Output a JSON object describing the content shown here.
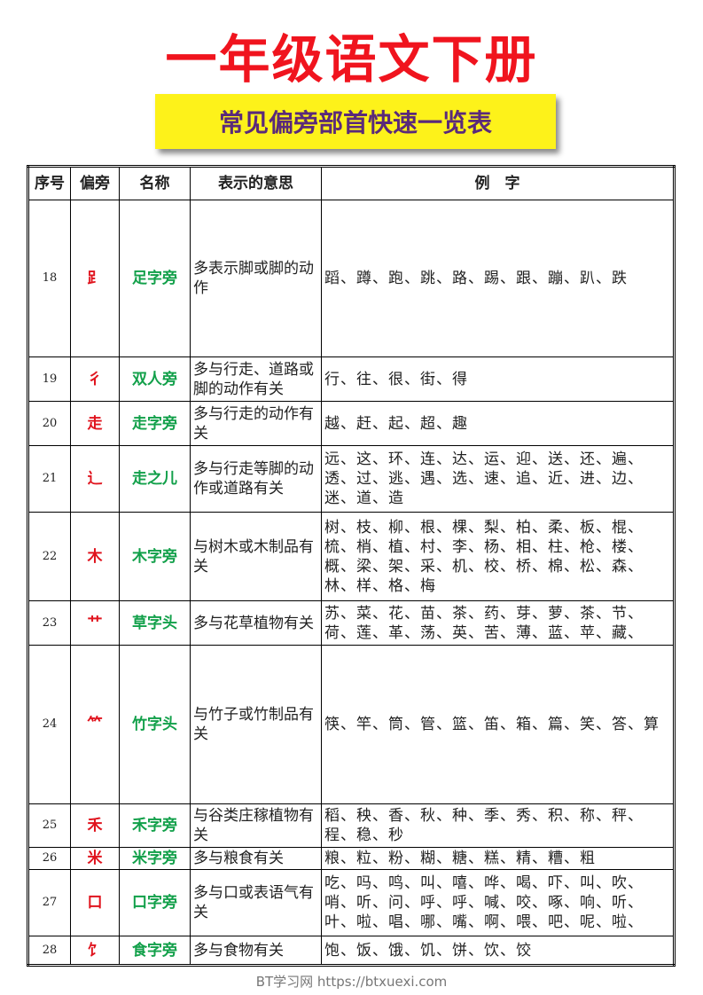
{
  "title": "一年级语文下册",
  "subtitle": "常见偏旁部首快速一览表",
  "headers": [
    "序号",
    "偏旁",
    "名称",
    "表示的意思",
    "例　字"
  ],
  "rows": [
    {
      "num": "18",
      "radical": "𧾷",
      "name": "足字旁",
      "meaning": "多表示脚或脚的动作",
      "examples": "蹈、蹲、跑、跳、路、踢、跟、蹦、趴、跌"
    },
    {
      "num": "19",
      "radical": "彳",
      "name": "双人旁",
      "meaning": "多与行走、道路或脚的动作有关",
      "examples": "行、往、很、街、得"
    },
    {
      "num": "20",
      "radical": "走",
      "name": "走字旁",
      "meaning": "多与行走的动作有关",
      "examples": "越、赶、起、超、趣"
    },
    {
      "num": "21",
      "radical": "辶",
      "name": "走之儿",
      "meaning": "多与行走等脚的动作或道路有关",
      "examples": "远、这、环、连、达、运、迎、送、还、遍、透、过、逃、遇、选、速、追、近、进、边、迷、道、造"
    },
    {
      "num": "22",
      "radical": "木",
      "name": "木字旁",
      "meaning": "与树木或木制品有关",
      "examples": "树、枝、柳、根、棵、梨、柏、柔、板、棍、梳、梢、植、村、李、杨、相、柱、枪、楼、概、梁、架、采、机、校、桥、棉、松、森、林、样、格、梅"
    },
    {
      "num": "23",
      "radical": "艹",
      "name": "草字头",
      "meaning": "多与花草植物有关",
      "examples": "苏、菜、花、苗、茶、药、芽、萝、茶、节、荷、莲、革、荡、英、苦、薄、蓝、苹、藏、"
    },
    {
      "num": "24",
      "radical": "⺮",
      "name": "竹字头",
      "meaning": "与竹子或竹制品有关",
      "examples": "筷、竿、筒、管、篮、笛、箱、篇、笑、答、算"
    },
    {
      "num": "25",
      "radical": "禾",
      "name": "禾字旁",
      "meaning": "与谷类庄稼植物有关",
      "examples": "稻、秧、香、秋、种、季、秀、积、称、秤、程、稳、秒"
    },
    {
      "num": "26",
      "radical": "米",
      "name": "米字旁",
      "meaning": "多与粮食有关",
      "examples": "粮、粒、粉、糊、糖、糕、精、糟、粗"
    },
    {
      "num": "27",
      "radical": "口",
      "name": "口字旁",
      "meaning": "多与口或表语气有关",
      "examples": "吃、吗、鸣、叫、嘻、哗、喝、吓、叫、吹、哨、听、问、呼、呼、喊、咬、啄、响、听、叶、啦、唱、哪、嘴、啊、喂、吧、呢、啦、"
    },
    {
      "num": "28",
      "radical": "饣",
      "name": "食字旁",
      "meaning": "多与食物有关",
      "examples": "饱、饭、饿、饥、饼、饮、饺"
    }
  ],
  "watermark": "BT学习网 https://btxuexi.com"
}
